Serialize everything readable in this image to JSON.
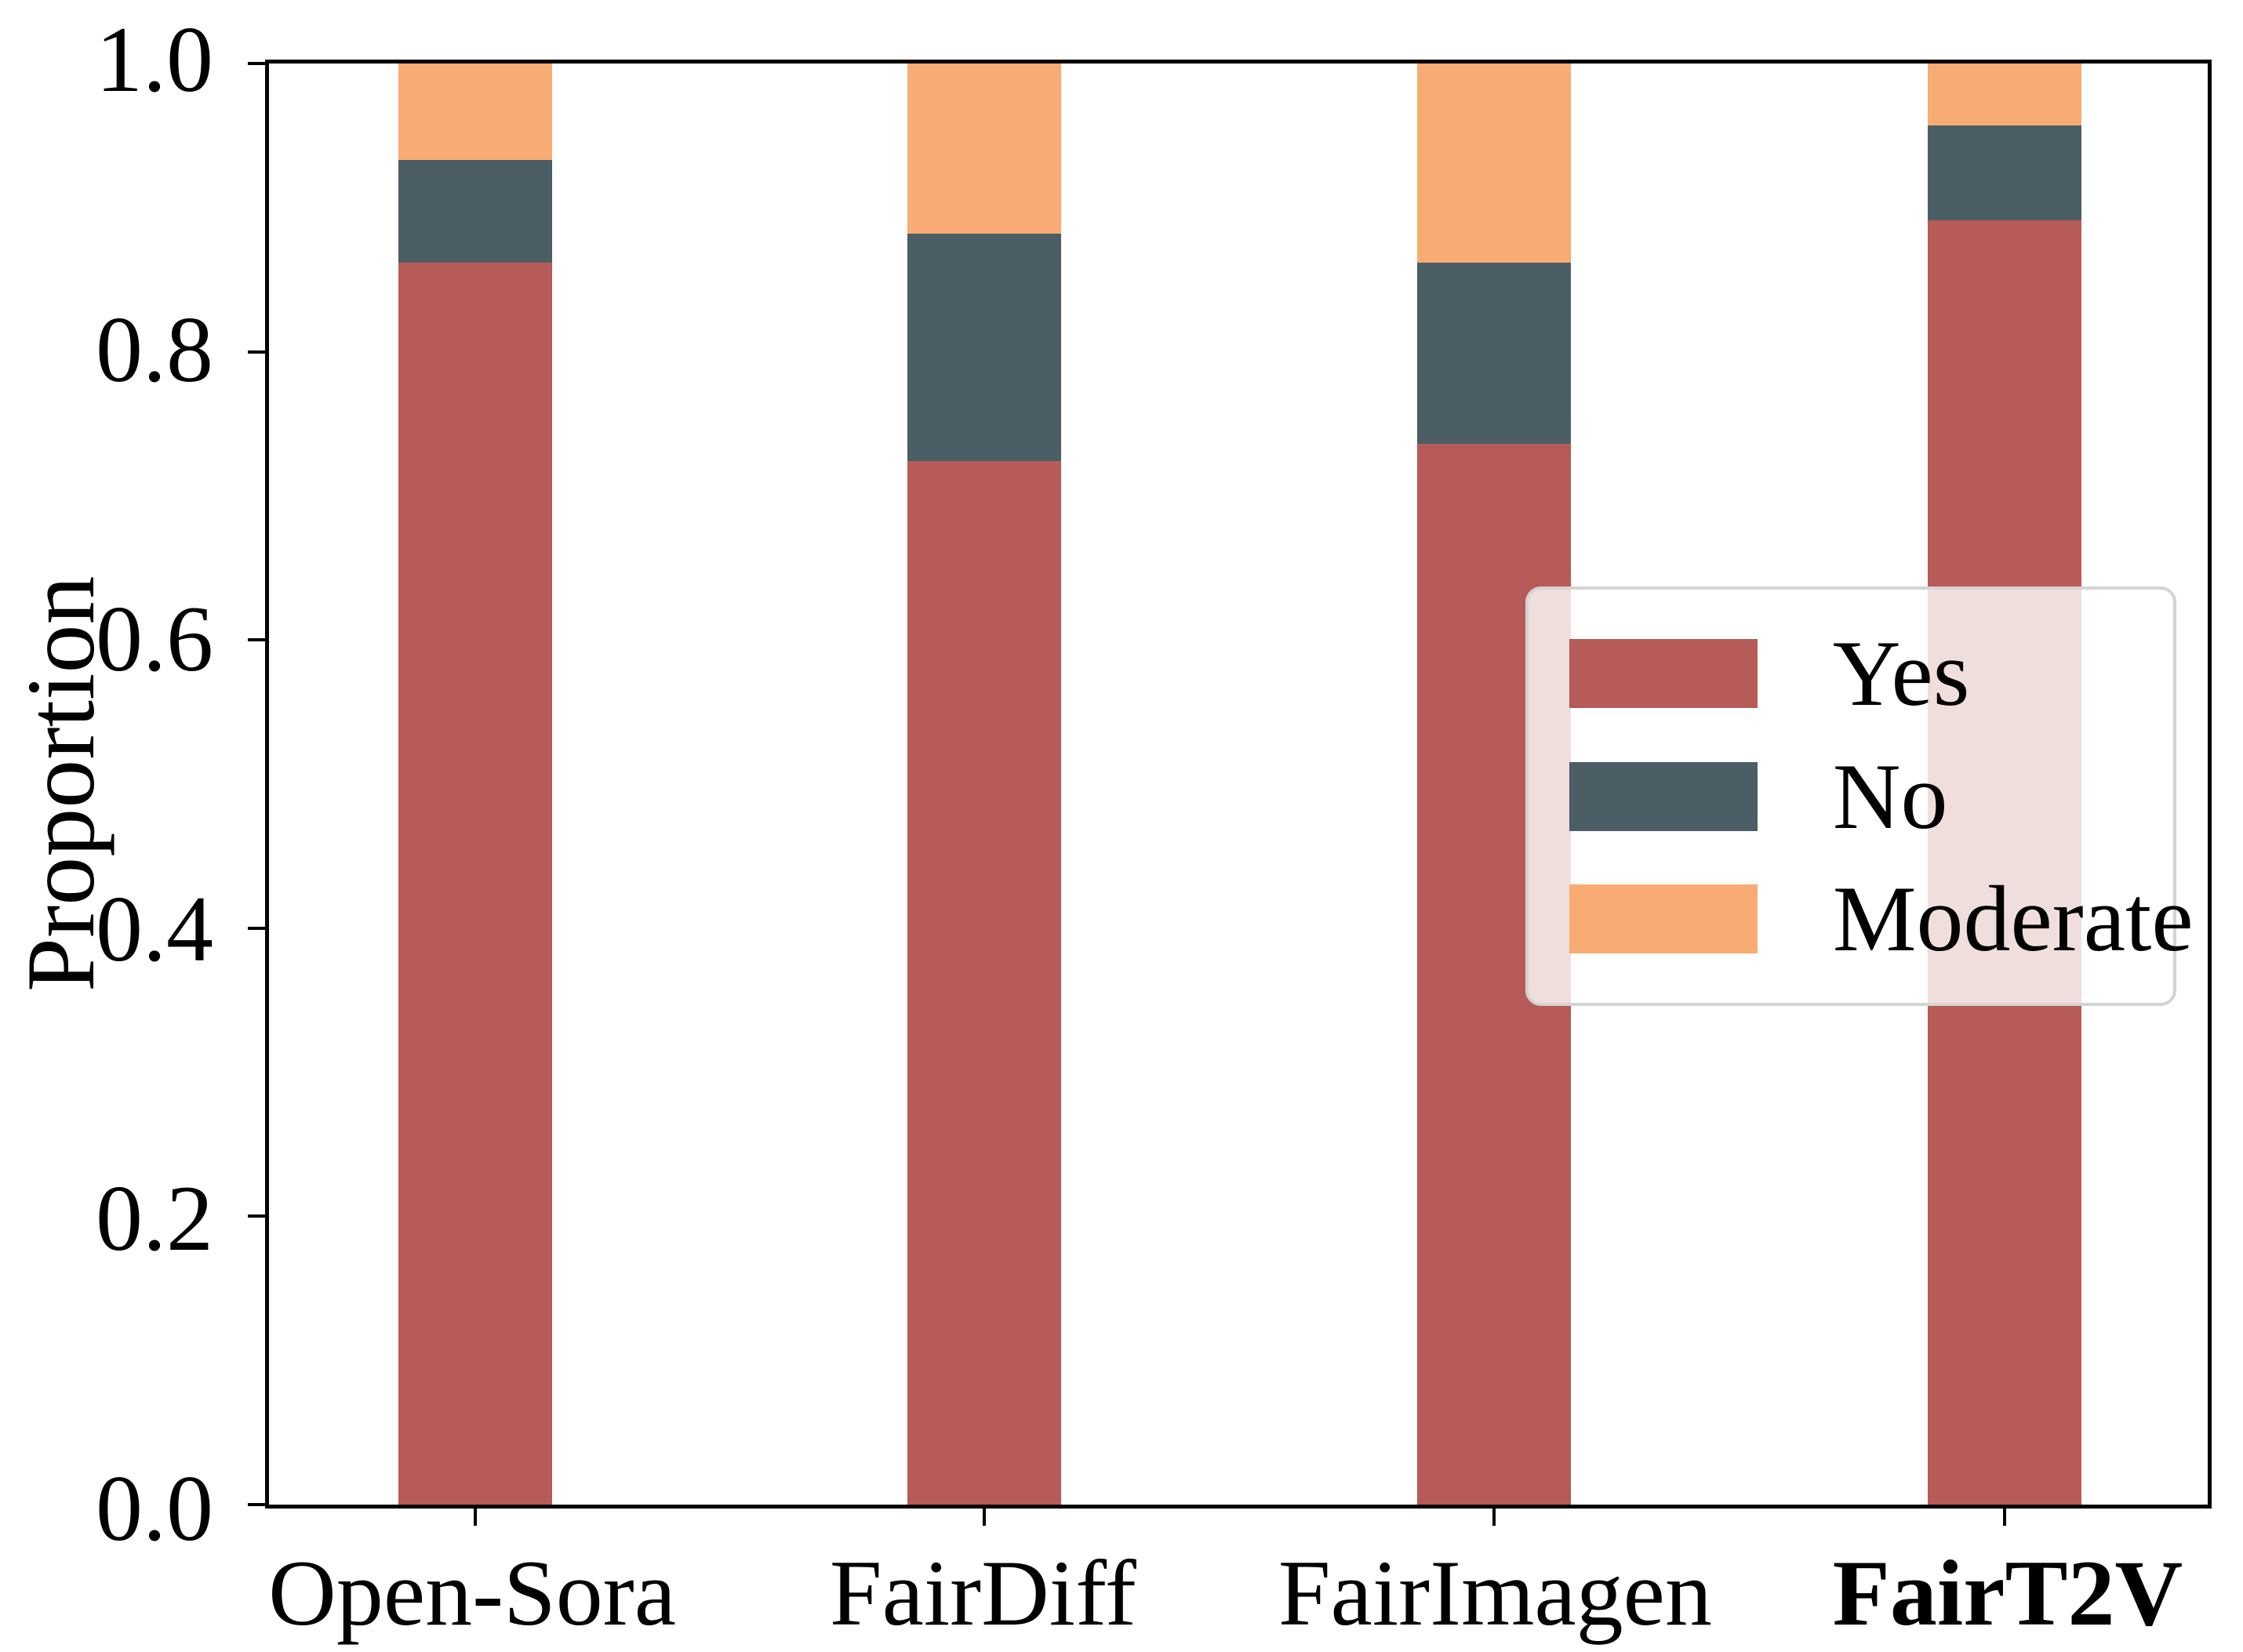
{
  "figure": {
    "background": "#ffffff",
    "axis_color": "#000000",
    "tick_label_fontsize_px": 120
  },
  "chart_data": {
    "type": "bar",
    "stacked": true,
    "title": "",
    "xlabel": "",
    "ylabel": "Proportion",
    "ylim": [
      0.0,
      1.0
    ],
    "yticks": [
      "0.0",
      "0.2",
      "0.4",
      "0.6",
      "0.8",
      "1.0"
    ],
    "grid": false,
    "categories": [
      {
        "label": "Open-Sora",
        "bold": false
      },
      {
        "label": "FairDiff",
        "bold": false
      },
      {
        "label": "FairImagen",
        "bold": false
      },
      {
        "label": "FairT2V",
        "bold": true
      }
    ],
    "series": [
      {
        "name": "Yes",
        "color": "#b65b58",
        "values": [
          0.862,
          0.724,
          0.736,
          0.891
        ]
      },
      {
        "name": "No",
        "color": "#4b5e65",
        "values": [
          0.071,
          0.158,
          0.126,
          0.066
        ]
      },
      {
        "name": "Moderate",
        "color": "#f8ac73",
        "values": [
          0.067,
          0.118,
          0.138,
          0.043
        ]
      }
    ],
    "legend": {
      "position": "center-right",
      "background": "rgba(255,255,255,0.8)",
      "border_color": "#d4d4d4",
      "entries": [
        "Yes",
        "No",
        "Moderate"
      ]
    }
  }
}
